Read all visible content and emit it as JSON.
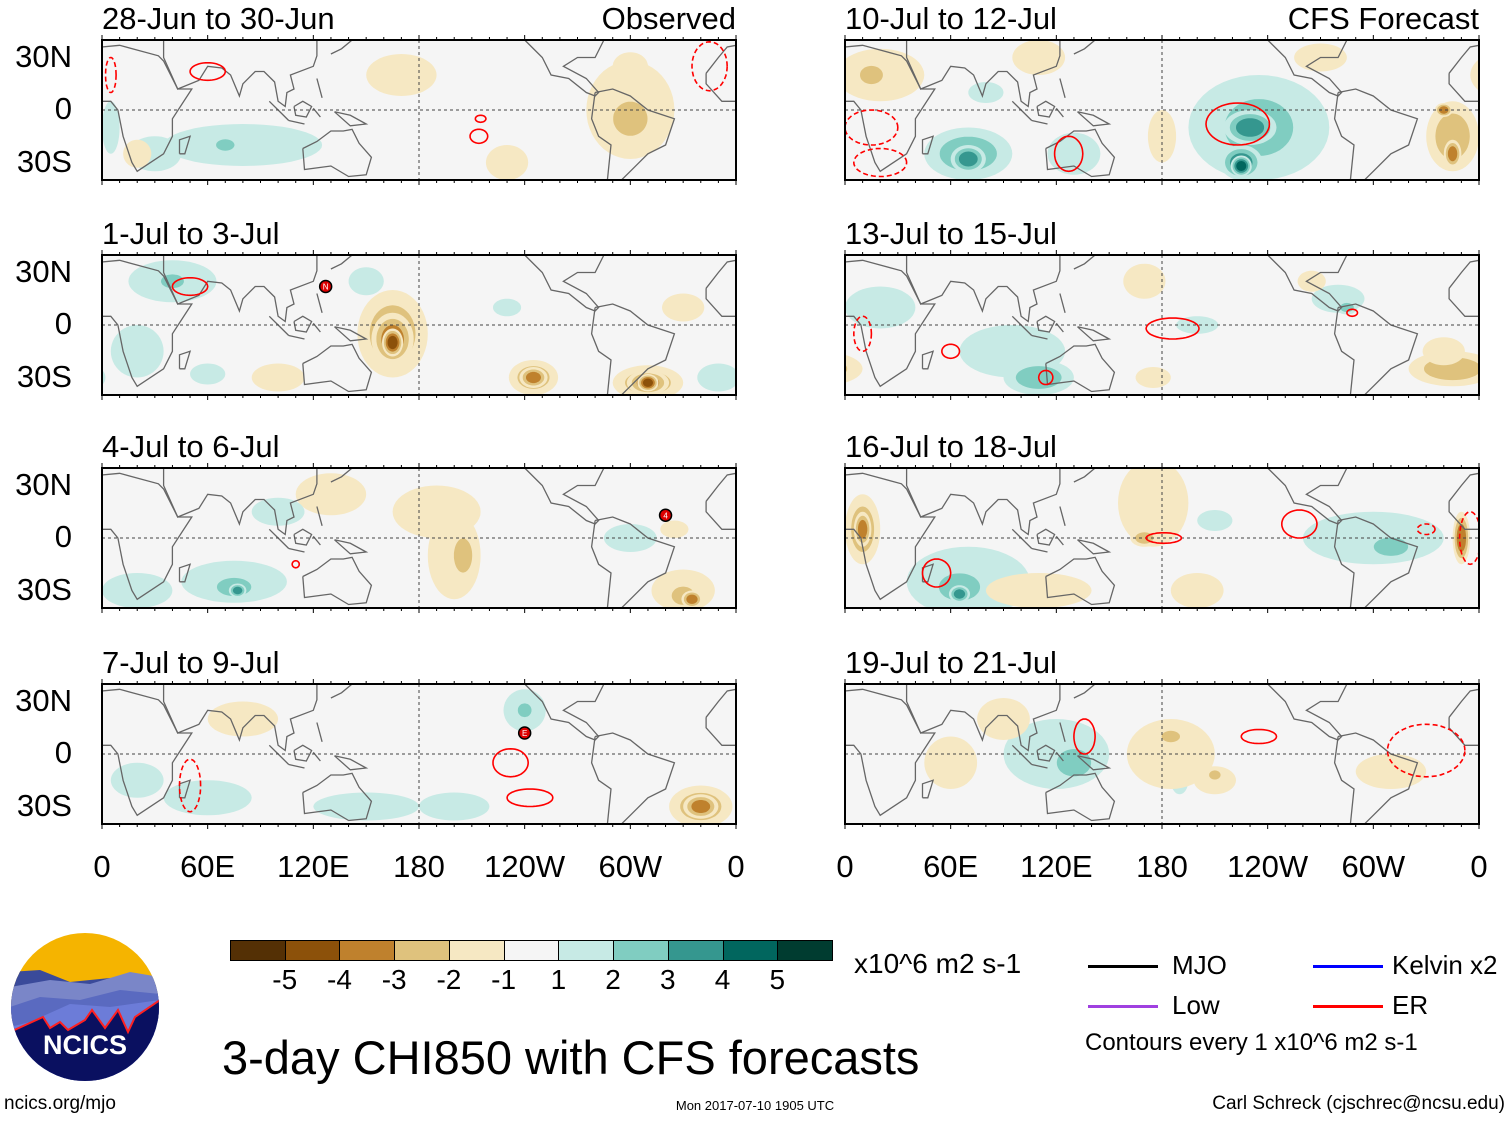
{
  "figure_title": "3-day CHI850 with CFS forecasts",
  "left_column_tag": "Observed",
  "right_column_tag": "CFS Forecast",
  "lat_labels": [
    "30N",
    "0",
    "30S"
  ],
  "lon_labels": [
    "0",
    "60E",
    "120E",
    "180",
    "120W",
    "60W",
    "0"
  ],
  "lon_label_values": [
    0,
    60,
    120,
    180,
    240,
    300,
    360
  ],
  "colors": {
    "levels": [
      "#543005",
      "#8c510a",
      "#bf812d",
      "#dfc27d",
      "#f6e8c3",
      "#f5f5f5",
      "#c7eae5",
      "#80cdc1",
      "#35978f",
      "#01665e",
      "#003c30"
    ],
    "er": "#ff0000",
    "mjo": "#000000",
    "low": "#a040e0",
    "kelvin": "#0000ff"
  },
  "colorbar": {
    "labels": [
      "-5",
      "-4",
      "-3",
      "-2",
      "-1",
      "1",
      "2",
      "3",
      "4",
      "5"
    ],
    "units": "x10^6 m2 s-1"
  },
  "legend": {
    "mjo": "MJO",
    "low": "Low",
    "kelvin": "Kelvin x2",
    "er": "ER",
    "contours_note": "Contours every 1 x10^6 m2 s-1"
  },
  "footer": {
    "url": "ncics.org/mjo",
    "timestamp": "Mon 2017-07-10 1905 UTC",
    "author": "Carl Schreck (cjschrec@ncsu.edu)",
    "logo_text": "NCICS"
  },
  "panels": [
    {
      "title": "28-Jun to 30-Jun",
      "anomalies": [
        [
          80,
          -20,
          45,
          12,
          1
        ],
        [
          70,
          -20,
          8,
          5,
          2
        ],
        [
          30,
          -25,
          15,
          10,
          1
        ],
        [
          5,
          -10,
          5,
          15,
          1
        ],
        [
          300,
          0,
          25,
          28,
          -1
        ],
        [
          300,
          -5,
          15,
          15,
          -2
        ],
        [
          170,
          20,
          20,
          12,
          -1
        ],
        [
          230,
          -30,
          12,
          10,
          -1
        ],
        [
          300,
          25,
          10,
          8,
          -1
        ],
        [
          20,
          -25,
          8,
          8,
          -1
        ]
      ],
      "er_contours": [
        [
          60,
          22,
          10,
          5,
          false
        ],
        [
          214,
          -15,
          5,
          4,
          false
        ],
        [
          215,
          -5,
          3,
          2,
          false
        ],
        [
          345,
          25,
          10,
          14,
          true
        ],
        [
          5,
          20,
          3,
          10,
          true
        ]
      ],
      "storms": []
    },
    {
      "title": "1-Jul to 3-Jul",
      "anomalies": [
        [
          165,
          -5,
          20,
          25,
          -2
        ],
        [
          165,
          -8,
          12,
          15,
          -3
        ],
        [
          165,
          -10,
          6,
          8,
          -4
        ],
        [
          245,
          -30,
          14,
          10,
          -2
        ],
        [
          245,
          -30,
          8,
          6,
          -3
        ],
        [
          310,
          -33,
          20,
          10,
          -2
        ],
        [
          310,
          -33,
          12,
          7,
          -3
        ],
        [
          310,
          -33,
          6,
          5,
          -4
        ],
        [
          330,
          10,
          12,
          8,
          -1
        ],
        [
          100,
          -30,
          15,
          8,
          -1
        ],
        [
          40,
          25,
          25,
          12,
          1
        ],
        [
          40,
          25,
          10,
          6,
          2
        ],
        [
          20,
          -15,
          15,
          15,
          1
        ],
        [
          60,
          -28,
          10,
          6,
          1
        ],
        [
          150,
          25,
          10,
          8,
          1
        ],
        [
          350,
          -30,
          12,
          8,
          1
        ],
        [
          230,
          10,
          8,
          5,
          1
        ]
      ],
      "er_contours": [
        [
          50,
          22,
          10,
          5,
          false
        ]
      ],
      "storms": [
        [
          127,
          22,
          "N"
        ]
      ]
    },
    {
      "title": "4-Jul to 6-Jul",
      "anomalies": [
        [
          200,
          -10,
          15,
          25,
          -1
        ],
        [
          205,
          -10,
          8,
          15,
          -2
        ],
        [
          130,
          25,
          20,
          12,
          -1
        ],
        [
          190,
          15,
          25,
          15,
          -1
        ],
        [
          330,
          -30,
          18,
          12,
          -1
        ],
        [
          330,
          -33,
          10,
          8,
          -2
        ],
        [
          335,
          -35,
          6,
          5,
          -3
        ],
        [
          325,
          5,
          8,
          5,
          -1
        ],
        [
          75,
          -25,
          30,
          12,
          1
        ],
        [
          75,
          -28,
          15,
          8,
          2
        ],
        [
          77,
          -30,
          5,
          4,
          3
        ],
        [
          20,
          -30,
          20,
          10,
          1
        ],
        [
          100,
          15,
          15,
          8,
          1
        ],
        [
          300,
          0,
          15,
          8,
          1
        ]
      ],
      "er_contours": [
        [
          110,
          -15,
          2,
          2,
          false
        ]
      ],
      "storms": [
        [
          320,
          13,
          "4"
        ]
      ]
    },
    {
      "title": "7-Jul to 9-Jul",
      "anomalies": [
        [
          240,
          25,
          12,
          12,
          1
        ],
        [
          240,
          25,
          6,
          6,
          2
        ],
        [
          60,
          -25,
          25,
          10,
          1
        ],
        [
          150,
          -30,
          30,
          8,
          1
        ],
        [
          200,
          -30,
          20,
          8,
          1
        ],
        [
          20,
          -15,
          15,
          10,
          1
        ],
        [
          340,
          -30,
          18,
          12,
          -2
        ],
        [
          340,
          -30,
          10,
          7,
          -3
        ],
        [
          80,
          20,
          20,
          10,
          -1
        ]
      ],
      "er_contours": [
        [
          232,
          -5,
          10,
          8,
          false
        ],
        [
          243,
          -25,
          13,
          5,
          false
        ],
        [
          50,
          -18,
          6,
          15,
          true
        ]
      ],
      "storms": [
        [
          240,
          12,
          "E"
        ]
      ]
    },
    {
      "title": "10-Jul to 12-Jul",
      "anomalies": [
        [
          235,
          -10,
          40,
          30,
          1
        ],
        [
          235,
          -10,
          30,
          25,
          2
        ],
        [
          230,
          -10,
          15,
          10,
          3
        ],
        [
          225,
          -30,
          12,
          10,
          3
        ],
        [
          225,
          -32,
          6,
          6,
          4
        ],
        [
          70,
          -25,
          25,
          15,
          2
        ],
        [
          70,
          -28,
          10,
          8,
          3
        ],
        [
          130,
          -25,
          15,
          12,
          1
        ],
        [
          80,
          10,
          10,
          6,
          1
        ],
        [
          20,
          20,
          25,
          15,
          -1
        ],
        [
          15,
          20,
          10,
          8,
          -2
        ],
        [
          345,
          -15,
          15,
          20,
          -2
        ],
        [
          345,
          -25,
          5,
          8,
          -3
        ],
        [
          340,
          0,
          5,
          4,
          -3
        ],
        [
          180,
          -15,
          8,
          15,
          -1
        ],
        [
          270,
          30,
          15,
          8,
          -1
        ],
        [
          110,
          30,
          15,
          10,
          -1
        ]
      ],
      "er_contours": [
        [
          223,
          -8,
          18,
          12,
          false
        ],
        [
          127,
          -25,
          8,
          10,
          false
        ],
        [
          15,
          -10,
          15,
          10,
          true
        ],
        [
          20,
          -30,
          15,
          8,
          true
        ]
      ],
      "storms": []
    },
    {
      "title": "13-Jul to 15-Jul",
      "anomalies": [
        [
          95,
          -15,
          30,
          15,
          1
        ],
        [
          110,
          -30,
          20,
          10,
          2
        ],
        [
          280,
          15,
          15,
          8,
          1
        ],
        [
          285,
          10,
          6,
          4,
          2
        ],
        [
          200,
          0,
          12,
          5,
          1
        ],
        [
          20,
          10,
          20,
          12,
          1
        ],
        [
          345,
          -25,
          25,
          10,
          -2
        ],
        [
          340,
          -15,
          12,
          8,
          -1
        ],
        [
          170,
          25,
          12,
          10,
          -1
        ],
        [
          175,
          -30,
          10,
          6,
          -1
        ],
        [
          265,
          25,
          8,
          6,
          -1
        ]
      ],
      "er_contours": [
        [
          186,
          -2,
          15,
          6,
          false
        ],
        [
          60,
          -15,
          5,
          4,
          false
        ],
        [
          114,
          -30,
          4,
          4,
          false
        ],
        [
          288,
          7,
          3,
          2,
          false
        ],
        [
          10,
          -5,
          5,
          10,
          true
        ]
      ],
      "storms": []
    },
    {
      "title": "16-Jul to 18-Jul",
      "anomalies": [
        [
          70,
          -25,
          35,
          20,
          1
        ],
        [
          65,
          -28,
          18,
          12,
          2
        ],
        [
          65,
          -32,
          6,
          5,
          3
        ],
        [
          300,
          0,
          40,
          15,
          1
        ],
        [
          310,
          -5,
          15,
          8,
          2
        ],
        [
          210,
          10,
          10,
          6,
          1
        ],
        [
          175,
          20,
          20,
          25,
          -1
        ],
        [
          170,
          0,
          8,
          5,
          -2
        ],
        [
          10,
          5,
          10,
          20,
          -2
        ],
        [
          10,
          5,
          5,
          10,
          -3
        ],
        [
          110,
          -30,
          30,
          10,
          -1
        ],
        [
          350,
          0,
          5,
          15,
          -3
        ],
        [
          200,
          -30,
          15,
          10,
          -1
        ]
      ],
      "er_contours": [
        [
          258,
          8,
          10,
          8,
          false
        ],
        [
          181,
          0,
          10,
          3,
          false
        ],
        [
          52,
          -20,
          8,
          8,
          false
        ],
        [
          330,
          5,
          5,
          3,
          true
        ],
        [
          355,
          0,
          6,
          15,
          true
        ]
      ],
      "storms": []
    },
    {
      "title": "19-Jul to 21-Jul",
      "anomalies": [
        [
          120,
          0,
          30,
          20,
          1
        ],
        [
          130,
          -5,
          15,
          12,
          2
        ],
        [
          190,
          -15,
          5,
          8,
          1
        ],
        [
          185,
          0,
          25,
          20,
          -1
        ],
        [
          185,
          10,
          8,
          5,
          -2
        ],
        [
          210,
          -15,
          12,
          8,
          -1
        ],
        [
          210,
          -12,
          5,
          4,
          -2
        ],
        [
          60,
          -5,
          15,
          15,
          -1
        ],
        [
          90,
          20,
          15,
          12,
          -1
        ],
        [
          310,
          -10,
          20,
          10,
          -1
        ]
      ],
      "er_contours": [
        [
          136,
          10,
          6,
          10,
          false
        ],
        [
          235,
          10,
          10,
          4,
          false
        ],
        [
          330,
          2,
          22,
          15,
          true
        ]
      ],
      "storms": []
    }
  ]
}
